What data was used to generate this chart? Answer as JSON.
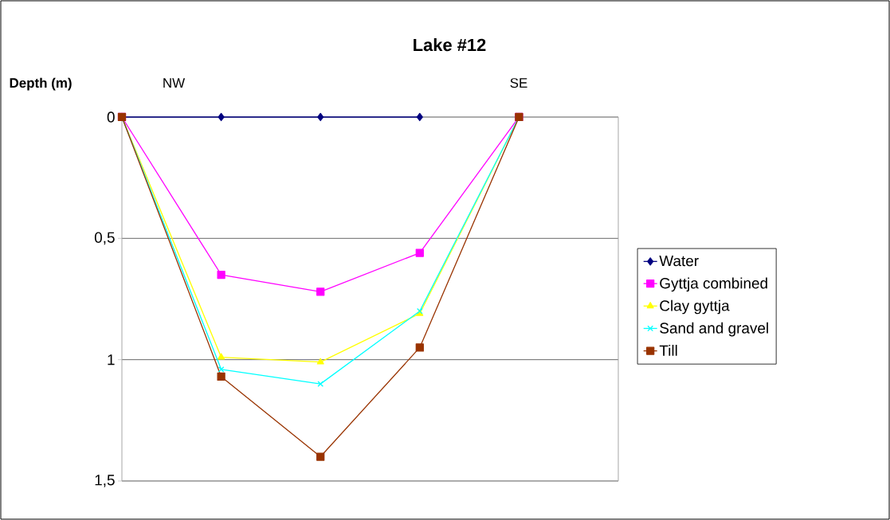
{
  "chart_data": {
    "type": "line",
    "title": "Lake #12",
    "ylabel": "Depth (m)",
    "annotations": [
      "NW",
      "SE"
    ],
    "categories": [
      null,
      null,
      null,
      null,
      null
    ],
    "ylim": [
      1.5,
      0
    ],
    "yticks": [
      {
        "value": 0,
        "label": "0"
      },
      {
        "value": 0.5,
        "label": "0,5"
      },
      {
        "value": 1,
        "label": "1"
      },
      {
        "value": 1.5,
        "label": "1,5"
      }
    ],
    "tick_labels": "y",
    "grid": "y",
    "legend": "right",
    "line_style": "solid",
    "series": [
      {
        "name": "Water",
        "color": "#000080",
        "marker": "diamond",
        "values": [
          0,
          0,
          0,
          0,
          null
        ]
      },
      {
        "name": "Gyttja combined",
        "color": "#ff00ff",
        "marker": "square",
        "values": [
          0,
          0.65,
          0.72,
          0.56,
          0
        ]
      },
      {
        "name": "Clay gyttja",
        "color": "#ffff00",
        "marker": "triangle",
        "values": [
          0,
          0.99,
          1.01,
          0.81,
          0
        ]
      },
      {
        "name": "Sand and gravel",
        "color": "#00ffff",
        "marker": "cross",
        "values": [
          0,
          1.04,
          1.1,
          0.8,
          0
        ]
      },
      {
        "name": "Till",
        "color": "#993300",
        "marker": "square",
        "values": [
          0,
          1.07,
          1.4,
          0.95,
          0
        ]
      }
    ]
  }
}
